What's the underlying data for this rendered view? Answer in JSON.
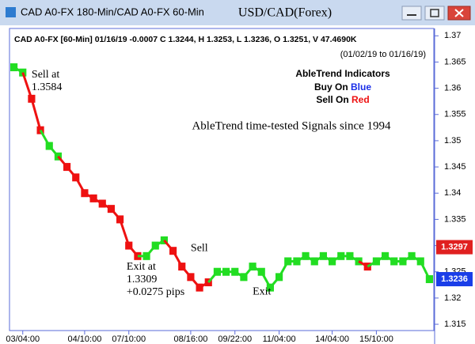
{
  "window_title": "CAD A0-FX 180-Min/CAD A0-FX 60-Min",
  "chart_data": {
    "type": "price",
    "title": "USD/CAD(Forex)",
    "subtitle": "CAD A0-FX [60-Min] 01/16/19 -0.0007 C 1.3244, H 1.3253, L 1.3236, O 1.3251, V 47.4690K",
    "date_range": "(01/02/19 to 01/16/19)",
    "legend_title": "AbleTrend Indicators",
    "legend_buy": [
      "Buy On ",
      "Blue"
    ],
    "legend_sell": [
      "Sell On ",
      "Red"
    ],
    "slogan": "AbleTrend time-tested Signals since 1994",
    "annotations": [
      {
        "lines": [
          "Sell at",
          "1.3584"
        ],
        "index": 2
      },
      {
        "lines": [
          "Sell"
        ],
        "index": 20
      },
      {
        "lines": [
          "Exit at",
          "1.3309",
          "+0.0275 pips"
        ],
        "index": 14
      },
      {
        "lines": [
          "Exit"
        ],
        "index": 27
      }
    ],
    "categories": [
      null,
      "03/04:00",
      null,
      null,
      null,
      null,
      null,
      null,
      "04/10:00",
      null,
      null,
      null,
      null,
      "07/10:00",
      null,
      null,
      null,
      null,
      null,
      null,
      "08/16:00",
      null,
      null,
      null,
      null,
      "09/22:00",
      null,
      null,
      null,
      null,
      "11/04:00",
      null,
      null,
      null,
      null,
      null,
      "14/04:00",
      null,
      null,
      null,
      null,
      "15/10:00",
      null,
      null,
      null,
      null,
      null,
      null
    ],
    "values": [
      1.364,
      1.363,
      1.358,
      1.352,
      1.349,
      1.347,
      1.345,
      1.343,
      1.34,
      1.339,
      1.338,
      1.337,
      1.335,
      1.33,
      1.328,
      1.328,
      1.33,
      1.331,
      1.329,
      1.326,
      1.324,
      1.322,
      1.323,
      1.325,
      1.325,
      1.325,
      1.324,
      1.326,
      1.325,
      1.322,
      1.324,
      1.327,
      1.327,
      1.328,
      1.327,
      1.328,
      1.327,
      1.328,
      1.328,
      1.327,
      1.326,
      1.327,
      1.328,
      1.327,
      1.327,
      1.328,
      1.327,
      1.3236
    ],
    "bar_colors": [
      "#22dd22",
      "#22dd22",
      "#ee1111",
      "#ee1111",
      "#22dd22",
      "#22dd22",
      "#ee1111",
      "#ee1111",
      "#ee1111",
      "#ee1111",
      "#ee1111",
      "#ee1111",
      "#ee1111",
      "#ee1111",
      "#ee1111",
      "#22dd22",
      "#22dd22",
      "#22dd22",
      "#ee1111",
      "#ee1111",
      "#ee1111",
      "#ee1111",
      "#ee1111",
      "#22dd22",
      "#22dd22",
      "#22dd22",
      "#22dd22",
      "#22dd22",
      "#22dd22",
      "#22dd22",
      "#22dd22",
      "#22dd22",
      "#22dd22",
      "#22dd22",
      "#22dd22",
      "#22dd22",
      "#22dd22",
      "#22dd22",
      "#22dd22",
      "#22dd22",
      "#ee1111",
      "#22dd22",
      "#22dd22",
      "#22dd22",
      "#22dd22",
      "#22dd22",
      "#22dd22",
      "#22dd22"
    ],
    "price_markers": [
      {
        "value": 1.3297,
        "color": "#e02020"
      },
      {
        "value": 1.3236,
        "color": "#1a3ee8"
      }
    ],
    "ylim": [
      1.3138,
      1.3714
    ],
    "yticks": [
      1.315,
      1.32,
      1.325,
      1.33,
      1.335,
      1.34,
      1.345,
      1.35,
      1.355,
      1.36,
      1.365,
      1.37
    ]
  }
}
